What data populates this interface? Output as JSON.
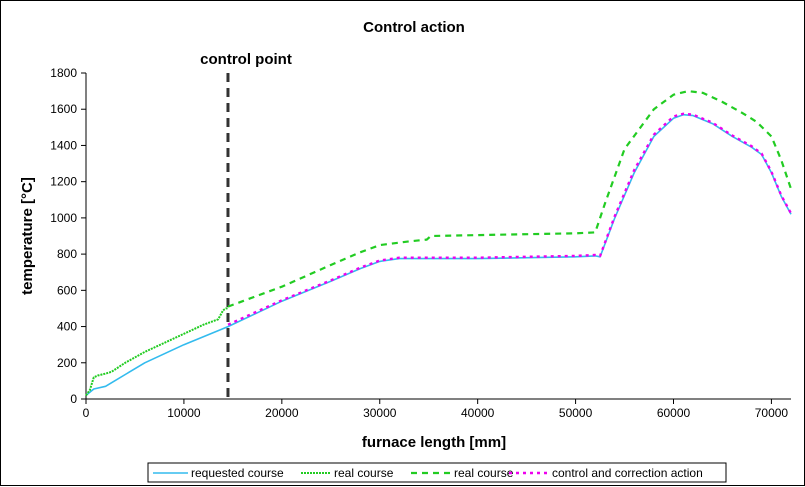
{
  "chart_data": {
    "type": "line",
    "title": "Control action",
    "xlabel": "furnace length [mm]",
    "ylabel": "temperature [°C]",
    "xlim": [
      0,
      72000
    ],
    "ylim": [
      0,
      1800
    ],
    "xticks": [
      0,
      10000,
      20000,
      30000,
      40000,
      50000,
      60000,
      70000
    ],
    "yticks": [
      0,
      200,
      400,
      600,
      800,
      1000,
      1200,
      1400,
      1600,
      1800
    ],
    "grid": false,
    "legend_position": "bottom",
    "annotations": [
      {
        "text": "control point",
        "x": 14500
      }
    ],
    "series": [
      {
        "name": "requested course",
        "color": "#33bbee",
        "dash": "solid",
        "x": [
          0,
          800,
          2000,
          6000,
          10000,
          14500,
          20000,
          25000,
          28000,
          30000,
          32000,
          40000,
          50000,
          52000,
          52500,
          54000,
          56000,
          58000,
          60000,
          61000,
          62000,
          64000,
          66000,
          68000,
          69000,
          70000,
          71000,
          72000
        ],
        "y": [
          20,
          55,
          70,
          200,
          300,
          400,
          540,
          650,
          720,
          760,
          775,
          775,
          785,
          790,
          785,
          1000,
          1250,
          1450,
          1550,
          1570,
          1565,
          1520,
          1450,
          1390,
          1350,
          1250,
          1120,
          1020
        ]
      },
      {
        "name": "real course",
        "color": "#22cc22",
        "dash": "dotted-solid",
        "x": [
          0,
          400,
          800,
          1200,
          2000,
          2600,
          4000,
          6000,
          8000,
          10000,
          12000,
          13500,
          14000,
          14300,
          14500
        ],
        "y": [
          20,
          50,
          120,
          130,
          140,
          150,
          200,
          260,
          310,
          360,
          410,
          440,
          490,
          500,
          500
        ]
      },
      {
        "name": "real course",
        "color": "#22cc22",
        "dash": "dashed",
        "x": [
          14500,
          20000,
          25000,
          28000,
          30000,
          33000,
          34800,
          35200,
          40000,
          50000,
          52000,
          53000,
          55000,
          58000,
          60000,
          61500,
          63000,
          65000,
          67000,
          68500,
          70000,
          71000,
          72000
        ],
        "y": [
          510,
          620,
          740,
          810,
          850,
          870,
          880,
          900,
          905,
          915,
          920,
          1080,
          1380,
          1600,
          1680,
          1700,
          1690,
          1640,
          1580,
          1530,
          1450,
          1320,
          1160
        ]
      },
      {
        "name": "control and correction action",
        "color": "#ee00ee",
        "dash": "dotted",
        "x": [
          14500,
          20000,
          25000,
          28000,
          30000,
          32000,
          40000,
          50000,
          52000,
          52500,
          54000,
          56000,
          58000,
          60000,
          61000,
          62000,
          64000,
          66000,
          68000,
          69000,
          70000,
          71000,
          72000
        ],
        "y": [
          410,
          545,
          655,
          725,
          765,
          780,
          780,
          790,
          795,
          790,
          1010,
          1265,
          1460,
          1560,
          1575,
          1570,
          1525,
          1455,
          1395,
          1355,
          1255,
          1125,
          1025
        ]
      }
    ]
  }
}
